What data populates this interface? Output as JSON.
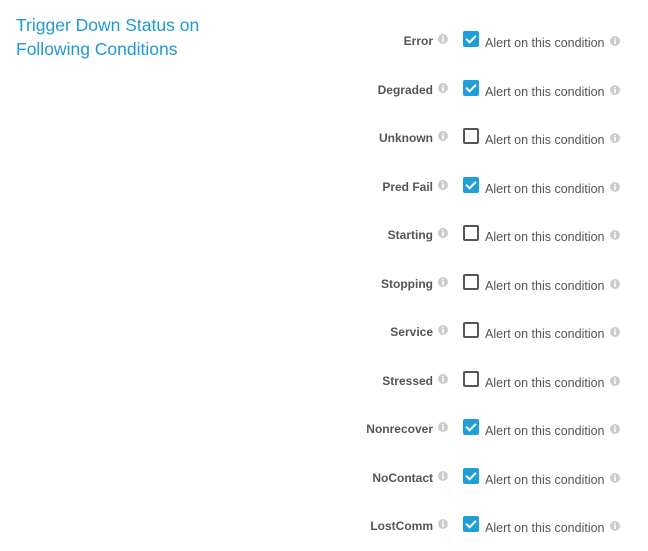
{
  "title": "Trigger Down Status on Following Conditions",
  "alert_label": "Alert on this condition",
  "colors": {
    "accent": "#1e9fdc",
    "title": "#1e9ad6"
  },
  "conditions": [
    {
      "label": "Error",
      "checked": true
    },
    {
      "label": "Degraded",
      "checked": true
    },
    {
      "label": "Unknown",
      "checked": false
    },
    {
      "label": "Pred Fail",
      "checked": true
    },
    {
      "label": "Starting",
      "checked": false
    },
    {
      "label": "Stopping",
      "checked": false
    },
    {
      "label": "Service",
      "checked": false
    },
    {
      "label": "Stressed",
      "checked": false
    },
    {
      "label": "Nonrecover",
      "checked": true
    },
    {
      "label": "NoContact",
      "checked": true
    },
    {
      "label": "LostComm",
      "checked": true
    }
  ]
}
